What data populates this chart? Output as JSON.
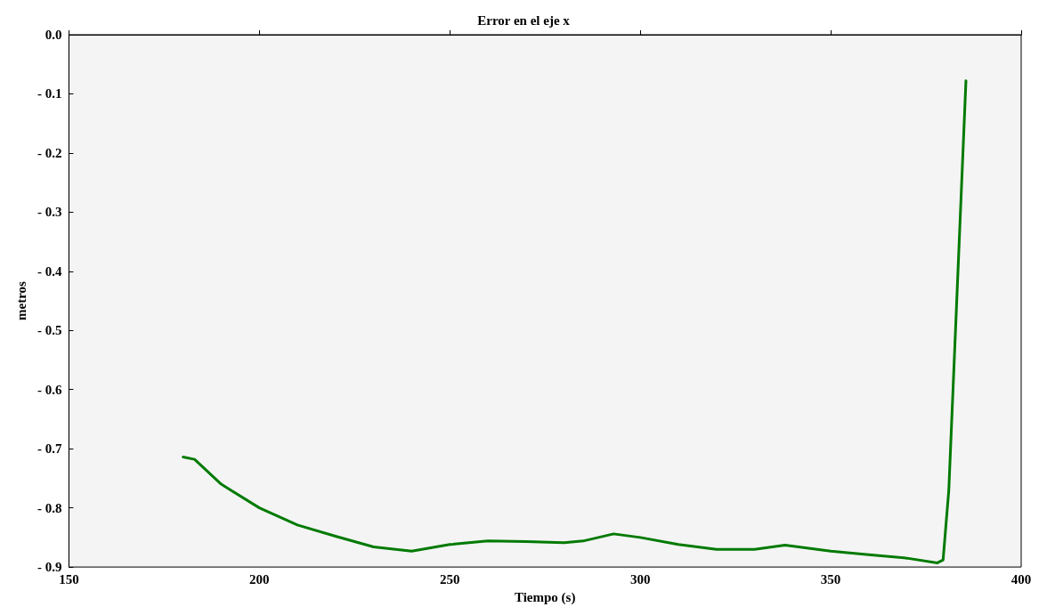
{
  "chart_data": {
    "type": "line",
    "title": "Error en el eje x",
    "xlabel": "Tiempo (s)",
    "ylabel": "metros",
    "xlim": [
      150,
      400
    ],
    "xticks": [
      150,
      200,
      250,
      300,
      350,
      400
    ],
    "ylim": [
      -0.9,
      0
    ],
    "yticks": [
      {
        "value": -0.9,
        "label": "- 0.9"
      },
      {
        "value": -0.8,
        "label": "- 0.8"
      },
      {
        "value": -0.7,
        "label": "- 0.7"
      },
      {
        "value": -0.6,
        "label": "- 0.6"
      },
      {
        "value": -0.5,
        "label": "- 0.5"
      },
      {
        "value": -0.4,
        "label": "- 0.4"
      },
      {
        "value": -0.3,
        "label": "- 0.3"
      },
      {
        "value": -0.2,
        "label": "- 0.2"
      },
      {
        "value": -0.1,
        "label": "- 0.1"
      },
      {
        "value": 0,
        "label": "0.0"
      }
    ],
    "grid": false,
    "marker": "none",
    "line_style": "solid",
    "series": [
      {
        "color": "#007a00",
        "x": [
          180,
          183,
          190,
          200,
          210,
          220,
          230,
          240,
          250,
          260,
          270,
          280,
          285,
          293,
          300,
          310,
          320,
          330,
          338,
          350,
          360,
          370,
          378,
          379.5,
          381,
          385.5
        ],
        "values": [
          -0.714,
          -0.718,
          -0.76,
          -0.8,
          -0.829,
          -0.848,
          -0.866,
          -0.873,
          -0.862,
          -0.856,
          -0.857,
          -0.859,
          -0.856,
          -0.844,
          -0.85,
          -0.862,
          -0.87,
          -0.87,
          -0.863,
          -0.873,
          -0.879,
          -0.885,
          -0.893,
          -0.888,
          -0.77,
          -0.078
        ]
      }
    ]
  }
}
